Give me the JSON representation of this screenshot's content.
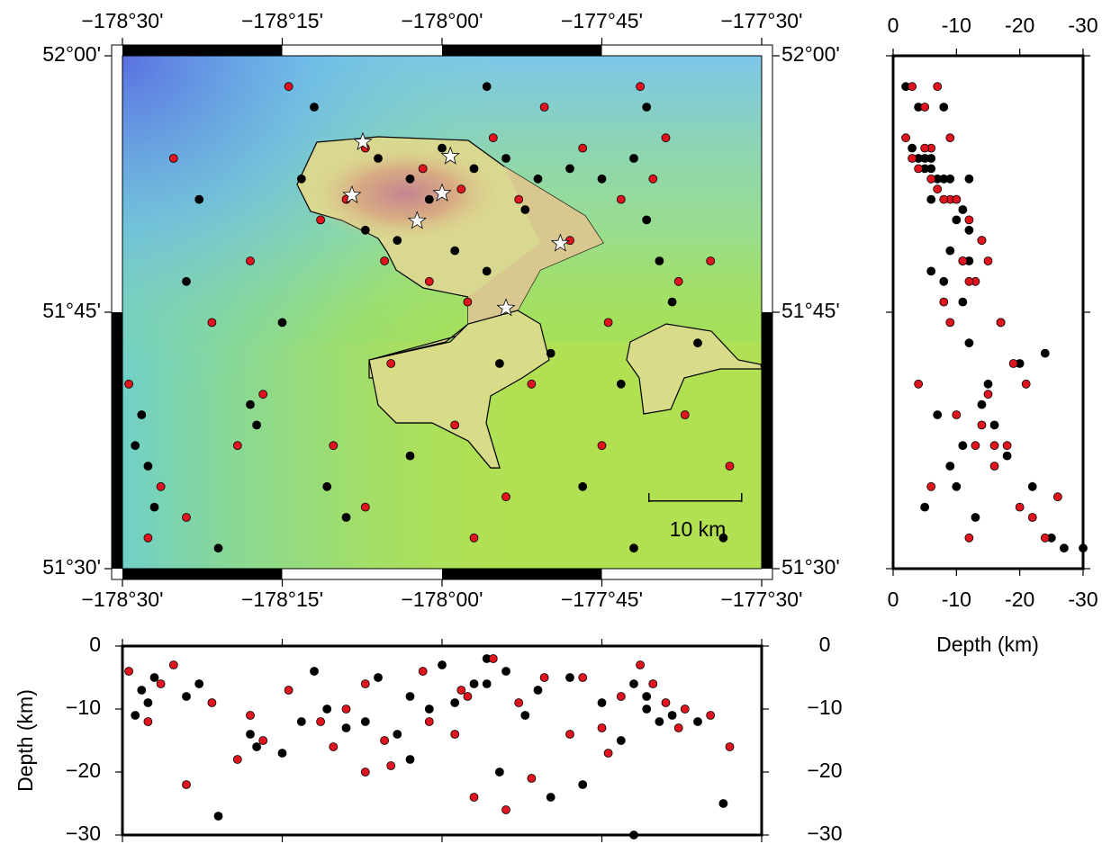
{
  "chart_data": {
    "type": "map",
    "xlim": [
      -178.5,
      -177.5
    ],
    "ylim": [
      51.5,
      52
    ],
    "xticks": [
      {
        "value": -178.5,
        "label": "−178°30'"
      },
      {
        "value": -178.25,
        "label": "−178°15'"
      },
      {
        "value": -178,
        "label": "−178°00'"
      },
      {
        "value": -177.75,
        "label": "−177°45'"
      },
      {
        "value": -177.5,
        "label": "−177°30'"
      }
    ],
    "yticks": [
      {
        "value": 51.5,
        "label": "51°30'"
      },
      {
        "value": 51.75,
        "label": "51°45'"
      },
      {
        "value": 52,
        "label": "52°00'"
      }
    ],
    "depth_label": "Depth (km)",
    "side_depth_lim": [
      0,
      -30
    ],
    "side_depth_ticks": [
      0,
      -10,
      -20,
      -30
    ],
    "bottom_depth_lim": [
      0,
      -30
    ],
    "bottom_depth_ticks": [
      0,
      {
        "value": -10,
        "label": "−10"
      },
      {
        "value": -20,
        "label": "−20"
      },
      {
        "value": -30,
        "label": "−30"
      }
    ],
    "scale_bar": "10 km",
    "series": [
      {
        "color": "#000000",
        "lon": [
          -178.1,
          -178.05,
          -178.0,
          -177.95,
          -177.9,
          -177.85,
          -177.8,
          -177.75,
          -177.7,
          -177.68,
          -177.68,
          -177.66,
          -177.64,
          -178.12,
          -178.07,
          -177.98,
          -177.93,
          -178.47,
          -178.46,
          -178.45,
          -178.48,
          -178.3,
          -178.29,
          -178.18,
          -178.15,
          -178.05,
          -177.91,
          -177.78,
          -177.72,
          -178.4,
          -178.38,
          -178.2,
          -177.93,
          -178.25,
          -177.6,
          -177.56,
          -178.35,
          -178.02,
          -177.87,
          -177.83,
          -177.7,
          -178.22
        ],
        "lat": [
          51.9,
          51.88,
          51.91,
          51.89,
          51.9,
          51.88,
          51.89,
          51.88,
          51.9,
          51.95,
          51.84,
          51.8,
          51.76,
          51.83,
          51.82,
          51.81,
          51.79,
          51.65,
          51.6,
          51.56,
          51.62,
          51.66,
          51.64,
          51.58,
          51.55,
          51.61,
          51.7,
          51.58,
          51.68,
          51.78,
          51.86,
          51.95,
          51.97,
          51.74,
          51.72,
          51.53,
          51.52,
          51.86,
          51.85,
          51.71,
          51.52,
          51.88
        ],
        "depth": [
          -5,
          -8,
          -3,
          -6,
          -4,
          -7,
          -5,
          -9,
          -6,
          -8,
          -10,
          -12,
          -11,
          -12,
          -14,
          -9,
          -6,
          -7,
          -9,
          -5,
          -11,
          -14,
          -16,
          -10,
          -13,
          -18,
          -20,
          -22,
          -15,
          -8,
          -6,
          -4,
          -2,
          -17,
          -12,
          -25,
          -27,
          -10,
          -11,
          -24,
          -30,
          -12
        ]
      },
      {
        "color": "#e0141e",
        "lon": [
          -178.12,
          -178.03,
          -177.97,
          -177.92,
          -177.88,
          -177.78,
          -177.72,
          -177.69,
          -177.67,
          -177.63,
          -178.15,
          -178.09,
          -178.02,
          -177.96,
          -178.49,
          -178.44,
          -178.46,
          -178.32,
          -178.28,
          -178.17,
          -178.12,
          -177.98,
          -177.86,
          -177.75,
          -177.62,
          -178.42,
          -178.36,
          -178.24,
          -177.84,
          -177.58,
          -177.55,
          -178.08,
          -177.95,
          -178.4,
          -177.8,
          -177.74,
          -178.19,
          -177.9,
          -178.3,
          -177.65
        ],
        "lat": [
          51.91,
          51.89,
          51.87,
          51.92,
          51.86,
          51.91,
          51.86,
          51.97,
          51.88,
          51.78,
          51.86,
          51.8,
          51.78,
          51.76,
          51.68,
          51.58,
          51.53,
          51.62,
          51.67,
          51.62,
          51.56,
          51.64,
          51.68,
          51.62,
          51.65,
          51.9,
          51.74,
          51.97,
          51.95,
          51.8,
          51.6,
          51.7,
          51.53,
          51.55,
          51.82,
          51.74,
          51.84,
          51.57,
          51.8,
          51.92
        ],
        "depth": [
          -6,
          -4,
          -7,
          -2,
          -9,
          -5,
          -8,
          -3,
          -6,
          -13,
          -10,
          -15,
          -12,
          -8,
          -4,
          -6,
          -12,
          -18,
          -15,
          -16,
          -20,
          -14,
          -21,
          -13,
          -10,
          -3,
          -9,
          -7,
          -5,
          -11,
          -16,
          -19,
          -24,
          -22,
          -14,
          -17,
          -12,
          -26,
          -11,
          -9
        ]
      }
    ],
    "stars": {
      "color": "#ffffff",
      "lon": [
        -178.124,
        -177.987,
        -178.141,
        -178.039,
        -177.815,
        -177.9,
        -178.0
      ],
      "lat": [
        51.916,
        51.902,
        51.864,
        51.839,
        51.817,
        51.754,
        51.866
      ]
    }
  }
}
